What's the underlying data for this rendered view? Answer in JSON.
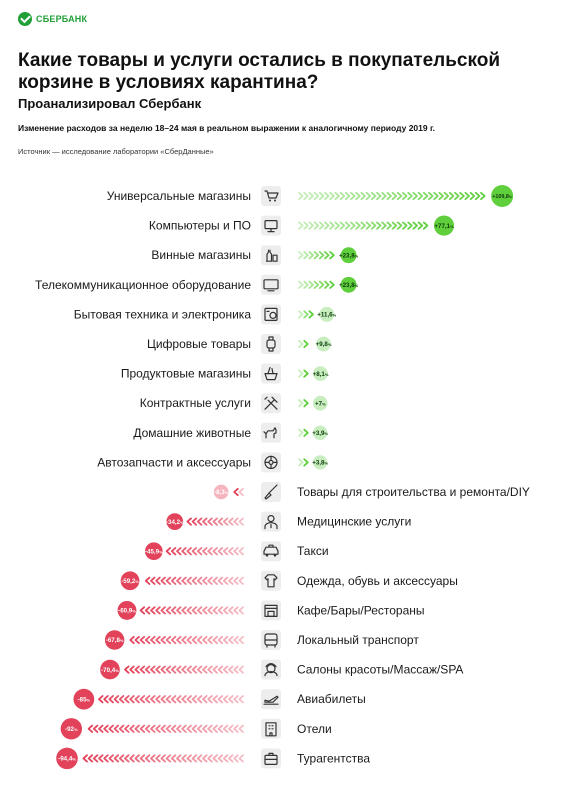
{
  "header": {
    "brand": "СБЕРБАНК",
    "title": "Какие товары и услуги остались в покупательской корзине в условиях карантина?",
    "subtitle": "Проанализировал Сбербанк",
    "description": "Изменение расходов за неделю 18–24 мая в реальном выражении к аналогичному периоду 2019 г.",
    "source": "Источник — исследование лаборатории «СберДанные»"
  },
  "colors": {
    "positive": "#5fcf3c",
    "positive_light": "#c8eec0",
    "negative": "#e2425a",
    "negative_light": "#f5b4be",
    "brand": "#21a038"
  },
  "chart_data": {
    "type": "bar",
    "title": "Какие товары и услуги остались в покупательской корзине в условиях карантина?",
    "ylabel": "Изменение расходов, %",
    "xlim": [
      -94.4,
      109.8
    ],
    "grid": false,
    "categories": [
      "Универсальные магазины",
      "Компьютеры и ПО",
      "Винные магазины",
      "Телекоммуникационное оборудование",
      "Бытовая техника и электроника",
      "Цифровые товары",
      "Продуктовые магазины",
      "Контрактные услуги",
      "Домашние животные",
      "Автозапчасти и аксессуары",
      "Товары для строительства и ремонта/DIY",
      "Медицинские услуги",
      "Такси",
      "Одежда, обувь и аксессуары",
      "Кафе/Бары/Рестораны",
      "Локальный транспорт",
      "Салоны красоты/Массаж/SPA",
      "Авиабилеты",
      "Отели",
      "Турагентства"
    ],
    "values": [
      109.8,
      77.1,
      23.8,
      23.8,
      11.6,
      9.8,
      8.1,
      7,
      3.9,
      3.8,
      -8.3,
      -34.2,
      -45.9,
      -59.2,
      -60.9,
      -67.8,
      -70.4,
      -85,
      -92,
      -94.4
    ],
    "labels": [
      "+109,8",
      "+77,1",
      "+23,8",
      "+23,8",
      "+11,6",
      "+9,8",
      "+8,1",
      "+7",
      "+3,9",
      "+3,8",
      "-8,3",
      "-34,2",
      "-45,9",
      "-59,2",
      "-60,9",
      "-67,8",
      "-70,4",
      "-85",
      "-92",
      "-94,4"
    ],
    "unit": "%",
    "icons": [
      "cart-icon",
      "computer-icon",
      "wine-bottles-icon",
      "tv-icon",
      "appliance-icon",
      "smartwatch-icon",
      "grocery-icon",
      "tools-icon",
      "pet-icon",
      "wheel-icon",
      "brush-icon",
      "doctor-icon",
      "taxi-icon",
      "clothing-icon",
      "cafe-icon",
      "bus-icon",
      "beauty-salon-icon",
      "plane-ticket-icon",
      "hotel-icon",
      "suitcase-icon"
    ]
  }
}
